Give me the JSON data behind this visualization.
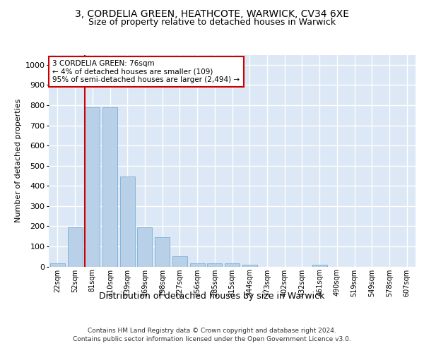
{
  "title1": "3, CORDELIA GREEN, HEATHCOTE, WARWICK, CV34 6XE",
  "title2": "Size of property relative to detached houses in Warwick",
  "xlabel": "Distribution of detached houses by size in Warwick",
  "ylabel": "Number of detached properties",
  "categories": [
    "22sqm",
    "52sqm",
    "81sqm",
    "110sqm",
    "139sqm",
    "169sqm",
    "198sqm",
    "227sqm",
    "256sqm",
    "285sqm",
    "315sqm",
    "344sqm",
    "373sqm",
    "402sqm",
    "432sqm",
    "461sqm",
    "490sqm",
    "519sqm",
    "549sqm",
    "578sqm",
    "607sqm"
  ],
  "values": [
    15,
    195,
    790,
    790,
    445,
    195,
    145,
    50,
    15,
    15,
    15,
    10,
    0,
    0,
    0,
    10,
    0,
    0,
    0,
    0,
    0
  ],
  "bar_color": "#b8d0e8",
  "bar_edge_color": "#7aaed4",
  "red_line_index": 2,
  "annotation_line1": "3 CORDELIA GREEN: 76sqm",
  "annotation_line2": "← 4% of detached houses are smaller (109)",
  "annotation_line3": "95% of semi-detached houses are larger (2,494) →",
  "annotation_box_color": "#ffffff",
  "annotation_box_edge": "#cc0000",
  "ylim": [
    0,
    1050
  ],
  "yticks": [
    0,
    100,
    200,
    300,
    400,
    500,
    600,
    700,
    800,
    900,
    1000
  ],
  "plot_bg_color": "#dce8f5",
  "footer_line1": "Contains HM Land Registry data © Crown copyright and database right 2024.",
  "footer_line2": "Contains public sector information licensed under the Open Government Licence v3.0.",
  "grid_color": "#ffffff",
  "title1_fontsize": 10,
  "title2_fontsize": 9,
  "xlabel_fontsize": 9,
  "ylabel_fontsize": 8,
  "tick_fontsize": 8,
  "xtick_fontsize": 7,
  "footer_fontsize": 6.5
}
